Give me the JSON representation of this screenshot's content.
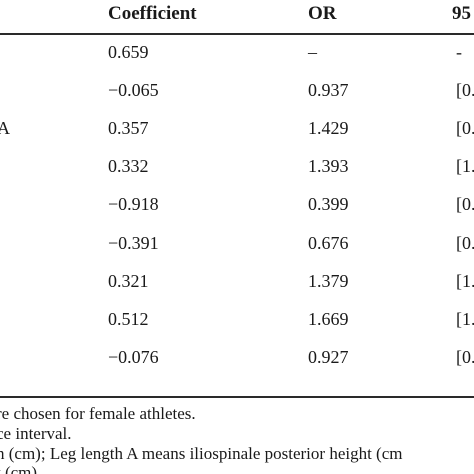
{
  "table": {
    "headers": {
      "coefficient": "Coefficient",
      "or": "OR",
      "ci": "95"
    },
    "rows": [
      {
        "variable": "",
        "coefficient": "0.659",
        "or": "–",
        "ci": "-"
      },
      {
        "variable": "",
        "coefficient": "−0.065",
        "or": "0.937",
        "ci": "[0."
      },
      {
        "variable": "A",
        "coefficient": "0.357",
        "or": "1.429",
        "ci": "[0."
      },
      {
        "variable": "",
        "coefficient": "0.332",
        "or": "1.393",
        "ci": "[1."
      },
      {
        "variable": "",
        "coefficient": "−0.918",
        "or": "0.399",
        "ci": "[0."
      },
      {
        "variable": "",
        "coefficient": "−0.391",
        "or": "0.676",
        "ci": "[0."
      },
      {
        "variable": "",
        "coefficient": "0.321",
        "or": "1.379",
        "ci": "[1."
      },
      {
        "variable": "",
        "coefficient": "0.512",
        "or": "1.669",
        "ci": "[1."
      },
      {
        "variable": "",
        "coefficient": "−0.076",
        "or": "0.927",
        "ci": "[0."
      }
    ]
  },
  "footnotes": [
    "re chosen for female athletes.",
    "ce interval.",
    "h (cm); Leg length A means iliospinale posterior height (cm",
    "t (cm)."
  ]
}
